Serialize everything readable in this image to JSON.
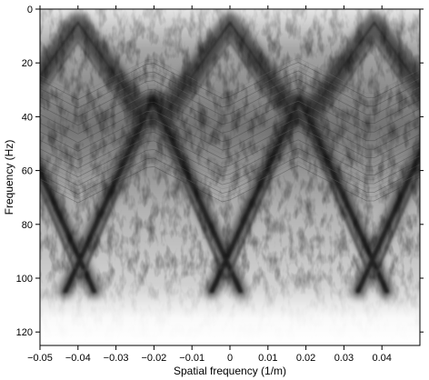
{
  "chart_data": {
    "type": "heatmap",
    "title": "",
    "xlabel": "Spatial frequency (1/m)",
    "ylabel": "Frequency (Hz)",
    "xlim": [
      -0.05,
      0.05
    ],
    "ylim": [
      125,
      0
    ],
    "y_axis_inverted": true,
    "colormap": "grayscale (white = low, black = high amplitude)",
    "grid": false,
    "xticks": [
      -0.05,
      -0.04,
      -0.03,
      -0.02,
      -0.01,
      0,
      0.01,
      0.02,
      0.03,
      0.04
    ],
    "xtick_labels": [
      "−0.05",
      "−0.04",
      "−0.03",
      "−0.02",
      "−0.01",
      "0",
      "0.01",
      "0.02",
      "0.03",
      "0.04"
    ],
    "yticks": [
      0,
      20,
      40,
      60,
      80,
      100,
      120
    ],
    "ytick_labels": [
      "0",
      "20",
      "40",
      "60",
      "80",
      "100",
      "120"
    ],
    "features": {
      "aliasing_period": 0.0385,
      "primary_ridge_apexes_k": [
        -0.0205,
        0.0185
      ],
      "primary_ridge_apex_hz": 33,
      "upper_ridge_apexes_k": [
        -0.04,
        0.0,
        0.038
      ],
      "upper_ridge_apex_hz": 5,
      "signal_band_hz": [
        5,
        110
      ],
      "strong_band_hz": [
        15,
        60
      ]
    }
  }
}
